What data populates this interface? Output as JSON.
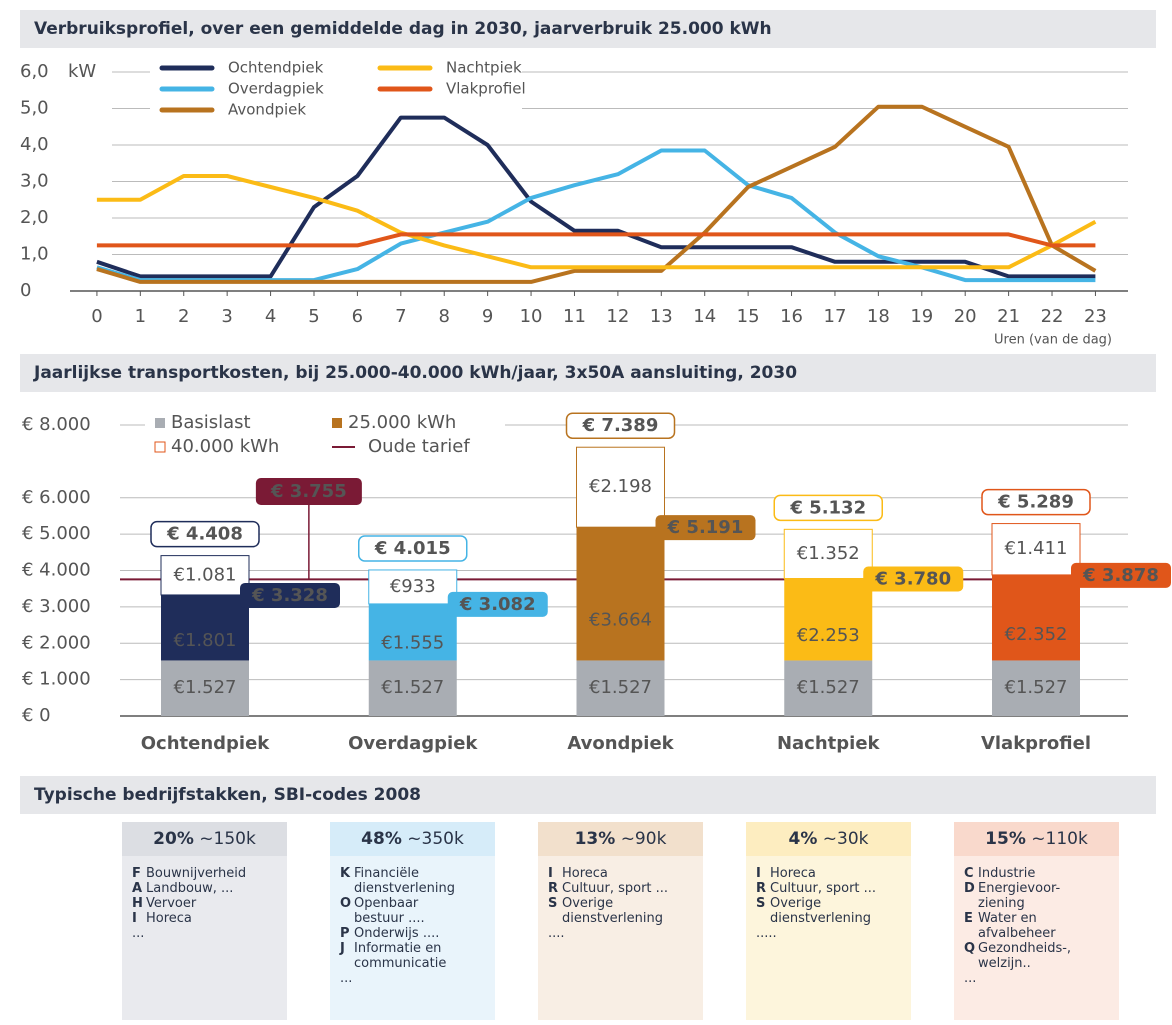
{
  "chart_data": [
    {
      "type": "line",
      "title": "Verbruiksprofiel, over een gemiddelde dag in 2030, jaarverbruik 25.000 kWh",
      "y_unit": "kW",
      "x_label": "Uren (van de dag)",
      "x": [
        0,
        1,
        2,
        3,
        4,
        5,
        6,
        7,
        8,
        9,
        10,
        11,
        12,
        13,
        14,
        15,
        16,
        17,
        18,
        19,
        20,
        21,
        22,
        23
      ],
      "xlim": [
        -0.62,
        23.75
      ],
      "xticks": [
        0,
        1,
        2,
        3,
        4,
        5,
        6,
        7,
        8,
        9,
        10,
        11,
        12,
        13,
        14,
        15,
        16,
        17,
        18,
        19,
        20,
        21,
        22,
        23
      ],
      "ylim": [
        0,
        6
      ],
      "yticks": [
        0,
        {
          "value": 1,
          "label": "1,0"
        },
        {
          "value": 2,
          "label": "2,0"
        },
        {
          "value": 3,
          "label": "3,0"
        },
        {
          "value": 4,
          "label": "4,0"
        },
        {
          "value": 5,
          "label": "5,0"
        },
        {
          "value": 6,
          "label": "6,0"
        }
      ],
      "grid": true,
      "series": [
        {
          "name": "Ochtendpiek",
          "color": "#1f2d5a",
          "values": [
            0.8,
            0.4,
            0.4,
            0.4,
            0.4,
            2.3,
            3.15,
            4.75,
            4.75,
            4.0,
            2.45,
            1.65,
            1.65,
            1.2,
            1.2,
            1.2,
            1.2,
            0.8,
            0.8,
            0.8,
            0.8,
            0.4,
            0.4,
            0.4
          ]
        },
        {
          "name": "Overdagpiek",
          "color": "#45b4e5",
          "values": [
            0.65,
            0.3,
            0.3,
            0.3,
            0.3,
            0.3,
            0.6,
            1.3,
            1.6,
            1.9,
            2.55,
            2.9,
            3.2,
            3.85,
            3.85,
            2.9,
            2.55,
            1.6,
            0.95,
            0.65,
            0.3,
            0.3,
            0.3,
            0.3
          ]
        },
        {
          "name": "Avondpiek",
          "color": "#b8731f",
          "values": [
            0.6,
            0.25,
            0.25,
            0.25,
            0.25,
            0.25,
            0.25,
            0.25,
            0.25,
            0.25,
            0.25,
            0.55,
            0.55,
            0.55,
            1.6,
            2.85,
            3.4,
            3.95,
            5.05,
            5.05,
            4.5,
            3.95,
            1.25,
            0.55
          ]
        },
        {
          "name": "Nachtpiek",
          "color": "#fbbb16",
          "values": [
            2.5,
            2.5,
            3.15,
            3.15,
            2.85,
            2.55,
            2.2,
            1.6,
            1.25,
            0.95,
            0.65,
            0.65,
            0.65,
            0.65,
            0.65,
            0.65,
            0.65,
            0.65,
            0.65,
            0.65,
            0.65,
            0.65,
            1.25,
            1.9
          ]
        },
        {
          "name": "Vlakprofiel",
          "color": "#e0561a",
          "values": [
            1.25,
            1.25,
            1.25,
            1.25,
            1.25,
            1.25,
            1.25,
            1.55,
            1.55,
            1.55,
            1.55,
            1.55,
            1.55,
            1.55,
            1.55,
            1.55,
            1.55,
            1.55,
            1.55,
            1.55,
            1.55,
            1.55,
            1.25,
            1.25
          ]
        }
      ]
    },
    {
      "type": "stacked_bar",
      "title": "Jaarlijkse transportkosten, bij 25.000-40.000 kWh/jaar, 3x50A aansluiting, 2030",
      "categories": [
        "Ochtendpiek",
        "Overdagpiek",
        "Avondpiek",
        "Nachtpiek",
        "Vlakprofiel"
      ],
      "category_colors": [
        "#1f2d5a",
        "#45b4e5",
        "#b8731f",
        "#fbbb16",
        "#e0561a"
      ],
      "ylim": [
        0,
        8000
      ],
      "yticks": [
        {
          "value": 0,
          "label": "€ 0"
        },
        {
          "value": 1000,
          "label": "€ 1.000"
        },
        {
          "value": 2000,
          "label": "€ 2.000"
        },
        {
          "value": 3000,
          "label": "€ 3.000"
        },
        {
          "value": 4000,
          "label": "€ 4.000"
        },
        {
          "value": 5000,
          "label": "€ 5.000"
        },
        {
          "value": 6000,
          "label": "€ 6.000"
        },
        {
          "value": 8000,
          "label": "€ 8.000"
        }
      ],
      "grid": true,
      "series": [
        {
          "name": "Basislast",
          "color": "#a9adb3",
          "values": [
            1527,
            1527,
            1527,
            1527,
            1527
          ],
          "value_labels": [
            "€1.527",
            "€1.527",
            "€1.527",
            "€1.527",
            "€1.527"
          ]
        },
        {
          "name": "25.000 kWh",
          "color": "#b8731f",
          "values": [
            1801,
            1555,
            3664,
            2253,
            2352
          ],
          "value_labels": [
            "€1.801",
            "€1.555",
            "€3.664",
            "€2.253",
            "€2.352"
          ]
        },
        {
          "name": "40.000 kWh",
          "color": "#e0561a",
          "values": [
            1081,
            933,
            2198,
            1352,
            1411
          ],
          "value_labels": [
            "€1.081",
            "€933",
            "€2.198",
            "€1.352",
            "€1.411"
          ]
        }
      ],
      "annotations_40k": [
        "€ 4.408",
        "€ 4.015",
        "€ 7.389",
        "€ 5.132",
        "€ 5.289"
      ],
      "annotations_25k": [
        "€ 3.328",
        "€ 3.082",
        "€ 5.191",
        "€ 3.780",
        "€ 3.878"
      ],
      "reference": {
        "name": "Oude tarief",
        "value": 3755,
        "label": "€ 3.755",
        "color": "#7a1a35"
      }
    }
  ],
  "sectors": {
    "title": "Typische bedrijfstakken, SBI-codes 2008",
    "cards": [
      {
        "share": "20%",
        "count": "~150k",
        "header_color": "#dcdee3",
        "body_color": "#e9eaee",
        "items": [
          {
            "code": "F",
            "text": "Bouwnijverheid"
          },
          {
            "code": "A",
            "text": "Landbouw, ..."
          },
          {
            "code": "H",
            "text": "Vervoer"
          },
          {
            "code": "I",
            "text": "Horeca"
          }
        ],
        "more": "..."
      },
      {
        "share": "48%",
        "count": "~350k",
        "header_color": "#d6ecf9",
        "body_color": "#e9f4fb",
        "items": [
          {
            "code": "K",
            "text": "Financiële\ndienstverlening"
          },
          {
            "code": "O",
            "text": "Openbaar\nbestuur ...."
          },
          {
            "code": "P",
            "text": "Onderwijs ...."
          },
          {
            "code": "J",
            "text": "Informatie en\ncommunicatie"
          }
        ],
        "more": "..."
      },
      {
        "share": "13%",
        "count": "~90k",
        "header_color": "#f2e0cc",
        "body_color": "#f8eee4",
        "items": [
          {
            "code": "I",
            "text": "Horeca"
          },
          {
            "code": "R",
            "text": "Cultuur, sport ..."
          },
          {
            "code": "S",
            "text": "Overige\ndienstverlening"
          }
        ],
        "more": "...."
      },
      {
        "share": "4%",
        "count": "~30k",
        "header_color": "#fdedc0",
        "body_color": "#fdf5dc",
        "items": [
          {
            "code": "I",
            "text": "Horeca"
          },
          {
            "code": "R",
            "text": "Cultuur, sport ..."
          },
          {
            "code": "S",
            "text": "Overige\ndienstverlening"
          }
        ],
        "more": "....."
      },
      {
        "share": "15%",
        "count": "~110k",
        "header_color": "#f9d9cc",
        "body_color": "#fcebe4",
        "items": [
          {
            "code": "C",
            "text": "Industrie"
          },
          {
            "code": "D",
            "text": "Energievoor-\nziening"
          },
          {
            "code": "E",
            "text": "Water en\nafvalbeheer"
          },
          {
            "code": "Q",
            "text": "Gezondheids-,\nwelzijn.."
          }
        ],
        "more": "..."
      }
    ]
  }
}
